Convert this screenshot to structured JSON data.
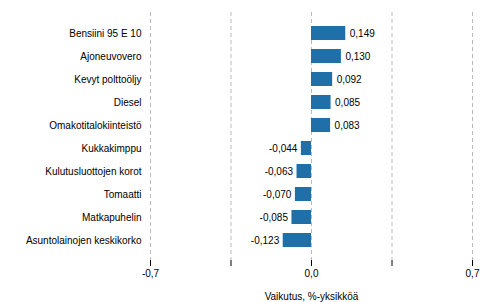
{
  "chart_data": {
    "type": "bar",
    "orientation": "horizontal",
    "categories": [
      "Asuntolainojen keskikorko",
      "Matkapuhelin",
      "Tomaatti",
      "Kulutusluottojen korot",
      "Kukkakimppu",
      "Omakotitalokiinteistö",
      "Diesel",
      "Kevyt polttoöljy",
      "Ajoneuvovero",
      "Bensiini 95 E 10"
    ],
    "values": [
      -0.123,
      -0.085,
      -0.07,
      -0.063,
      -0.044,
      0.083,
      0.085,
      0.092,
      0.13,
      0.149
    ],
    "value_labels": [
      "-0,123",
      "-0,085",
      "-0,070",
      "-0,063",
      "-0,044",
      "0,083",
      "0,085",
      "0,092",
      "0,130",
      "0,149"
    ],
    "data_labels": true,
    "color": "#1f6fa8",
    "xlabel": "Vaikutus, %-yksikköä",
    "xlim": [
      -0.7,
      0.7
    ],
    "xticks": [
      {
        "value": -0.7,
        "label": "-0,7"
      },
      {
        "value": -0.35,
        "label": null
      },
      {
        "value": 0.0,
        "label": "0,0"
      },
      {
        "value": 0.35,
        "label": null
      },
      {
        "value": 0.7,
        "label": "0,7"
      }
    ],
    "grid": true
  }
}
